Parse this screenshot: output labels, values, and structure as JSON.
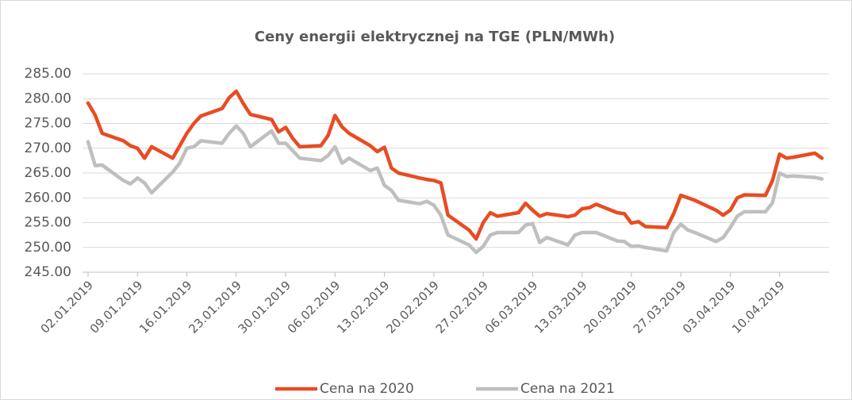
{
  "chart_data": {
    "type": "line",
    "title": "Ceny energii elektrycznej na TGE (PLN/MWh)",
    "x": [
      "02.01.2019",
      "03.01.2019",
      "04.01.2019",
      "07.01.2019",
      "08.01.2019",
      "09.01.2019",
      "10.01.2019",
      "11.01.2019",
      "14.01.2019",
      "15.01.2019",
      "16.01.2019",
      "17.01.2019",
      "18.01.2019",
      "21.01.2019",
      "22.01.2019",
      "23.01.2019",
      "24.01.2019",
      "25.01.2019",
      "28.01.2019",
      "29.01.2019",
      "30.01.2019",
      "31.01.2019",
      "01.02.2019",
      "04.02.2019",
      "05.02.2019",
      "06.02.2019",
      "07.02.2019",
      "08.02.2019",
      "11.02.2019",
      "12.02.2019",
      "13.02.2019",
      "14.02.2019",
      "15.02.2019",
      "18.02.2019",
      "19.02.2019",
      "20.02.2019",
      "21.02.2019",
      "22.02.2019",
      "25.02.2019",
      "26.02.2019",
      "27.02.2019",
      "28.02.2019",
      "01.03.2019",
      "04.03.2019",
      "05.03.2019",
      "06.03.2019",
      "07.03.2019",
      "08.03.2019",
      "11.03.2019",
      "12.03.2019",
      "13.03.2019",
      "14.03.2019",
      "15.03.2019",
      "18.03.2019",
      "19.03.2019",
      "20.03.2019",
      "21.03.2019",
      "22.03.2019",
      "25.03.2019",
      "26.03.2019",
      "27.03.2019",
      "28.03.2019",
      "29.03.2019",
      "01.04.2019",
      "02.04.2019",
      "03.04.2019",
      "04.04.2019",
      "05.04.2019",
      "08.04.2019",
      "09.04.2019",
      "10.04.2019",
      "11.04.2019",
      "12.04.2019",
      "15.04.2019",
      "16.04.2019"
    ],
    "series": [
      {
        "name": "Cena na 2020",
        "color": "#e84c22",
        "values": [
          279.1,
          276.7,
          273.0,
          271.5,
          270.5,
          270.0,
          268.0,
          270.3,
          268.0,
          270.5,
          273.0,
          275.0,
          276.5,
          278.0,
          280.2,
          281.5,
          279.0,
          276.8,
          275.8,
          273.3,
          274.2,
          272.0,
          270.3,
          270.5,
          272.5,
          276.6,
          274.3,
          273.0,
          270.5,
          269.3,
          270.2,
          266.0,
          265.0,
          264.0,
          263.7,
          263.5,
          263.0,
          256.5,
          253.5,
          251.7,
          255.0,
          257.0,
          256.3,
          257.0,
          258.9,
          257.5,
          256.3,
          256.8,
          256.2,
          256.5,
          257.8,
          258.0,
          258.7,
          257.0,
          256.8,
          254.9,
          255.2,
          254.2,
          254.0,
          256.8,
          260.5,
          260.0,
          259.5,
          257.5,
          256.5,
          257.5,
          260.0,
          260.6,
          260.5,
          263.5,
          268.8,
          268.0,
          268.2,
          269.0,
          268.0
        ]
      },
      {
        "name": "Cena na 2021",
        "color": "#bfbfbf",
        "values": [
          271.3,
          266.5,
          266.6,
          263.5,
          262.8,
          264.0,
          263.0,
          261.0,
          265.2,
          267.0,
          270.0,
          270.3,
          271.5,
          271.0,
          273.0,
          274.5,
          273.0,
          270.3,
          273.5,
          271.0,
          271.0,
          269.5,
          268.0,
          267.5,
          268.5,
          270.3,
          267.0,
          268.0,
          265.5,
          266.0,
          262.5,
          261.5,
          259.5,
          258.8,
          259.3,
          258.5,
          256.5,
          252.5,
          250.5,
          249.0,
          250.2,
          252.5,
          253.0,
          253.0,
          254.5,
          254.8,
          251.0,
          252.0,
          250.5,
          252.5,
          253.0,
          253.0,
          253.0,
          251.3,
          251.2,
          250.2,
          250.3,
          250.0,
          249.3,
          253.0,
          254.7,
          253.5,
          253.0,
          251.2,
          252.0,
          254.0,
          256.3,
          257.2,
          257.2,
          259.0,
          265.0,
          264.3,
          264.4,
          264.1,
          263.8
        ]
      }
    ],
    "xlim": [
      "02.01.2019",
      "17.04.2019"
    ],
    "xticks": [
      "02.01.2019",
      "09.01.2019",
      "16.01.2019",
      "23.01.2019",
      "30.01.2019",
      "06.02.2019",
      "13.02.2019",
      "20.02.2019",
      "27.02.2019",
      "06.03.2019",
      "13.03.2019",
      "20.03.2019",
      "27.03.2019",
      "03.04.2019",
      "10.04.2019"
    ],
    "ylim": [
      245,
      285
    ],
    "yticks": [
      {
        "value": 245,
        "label": "245.00"
      },
      {
        "value": 250,
        "label": "250.00"
      },
      {
        "value": 255,
        "label": "255.00"
      },
      {
        "value": 260,
        "label": "260.00"
      },
      {
        "value": 265,
        "label": "265.00"
      },
      {
        "value": 270,
        "label": "270.00"
      },
      {
        "value": 275,
        "label": "275.00"
      },
      {
        "value": 280,
        "label": "280.00"
      },
      {
        "value": 285,
        "label": "285.00"
      }
    ],
    "grid": true,
    "legend": "bottom"
  }
}
